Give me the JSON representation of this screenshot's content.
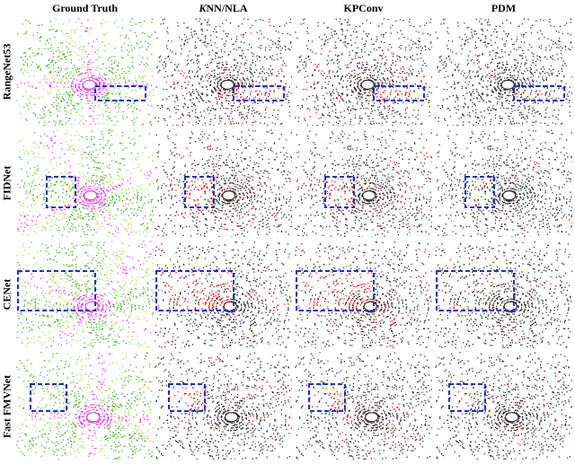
{
  "columns": [
    {
      "label": "Ground Truth",
      "italic_prefix": ""
    },
    {
      "label": "NN/NLA",
      "italic_prefix": "K"
    },
    {
      "label": "KPConv",
      "italic_prefix": ""
    },
    {
      "label": "PDM",
      "italic_prefix": ""
    }
  ],
  "rows": [
    {
      "label": "RangeNet53"
    },
    {
      "label": "FIDNet"
    },
    {
      "label": "CENet"
    },
    {
      "label": "Fast FMVNet"
    }
  ],
  "colors": {
    "ground_truth_vegetation": "#3fb51f",
    "ground_truth_terrain": "#9be05a",
    "ground_truth_road": "#e040e8",
    "ground_truth_sidewalk": "#f0b020",
    "prediction_points": "#333333",
    "error_points": "#ff1a1a",
    "highlight_box": "#1a2fd0"
  }
}
